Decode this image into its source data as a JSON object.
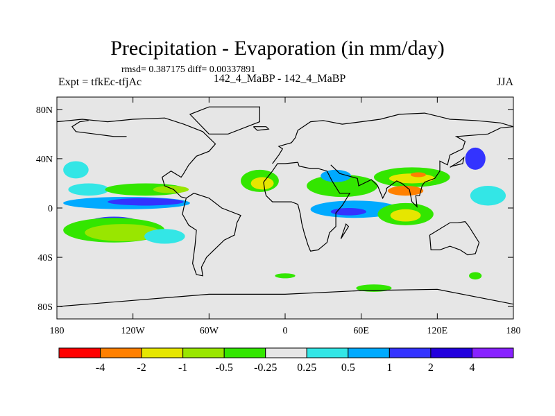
{
  "title": "Precipitation - Evaporation (in mm/day)",
  "stats": "rmsd= 0.387175 diff= 0.00337891",
  "experiment": "Expt = tfkEc-tfjAc",
  "case": "142_4_MaBP - 142_4_MaBP",
  "season": "JJA",
  "map": {
    "lon_range": [
      -180,
      180
    ],
    "lat_range": [
      -90,
      90
    ],
    "lat_ticks": [
      {
        "value": 80,
        "label": "80N"
      },
      {
        "value": 40,
        "label": "40N"
      },
      {
        "value": 0,
        "label": "0"
      },
      {
        "value": -40,
        "label": "40S"
      },
      {
        "value": -80,
        "label": "80S"
      }
    ],
    "lon_ticks": [
      {
        "value": -180,
        "label": "180"
      },
      {
        "value": -120,
        "label": "120W"
      },
      {
        "value": -60,
        "label": "60W"
      },
      {
        "value": 0,
        "label": "0"
      },
      {
        "value": 60,
        "label": "60E"
      },
      {
        "value": 120,
        "label": "120E"
      },
      {
        "value": 180,
        "label": "180"
      }
    ]
  },
  "colorbar": {
    "colors": [
      "#ff0000",
      "#ff8000",
      "#e6e600",
      "#99e600",
      "#33e600",
      "#e6e6e6",
      "#33e6e6",
      "#00aaff",
      "#3333ff",
      "#2200dd",
      "#8822ff"
    ],
    "labels": [
      "-4",
      "-2",
      "-1",
      "-0.5",
      "-0.25",
      "0.25",
      "0.5",
      "1",
      "2",
      "4"
    ]
  },
  "fields": [
    {
      "lon": -155,
      "lat": 15,
      "rx": 16,
      "ry": 5,
      "color": "#33e6e6"
    },
    {
      "lon": -110,
      "lat": 15,
      "rx": 32,
      "ry": 5,
      "color": "#33e600"
    },
    {
      "lon": -90,
      "lat": 15,
      "rx": 14,
      "ry": 3,
      "color": "#99e600"
    },
    {
      "lon": -125,
      "lat": 4,
      "rx": 50,
      "ry": 5,
      "color": "#00aaff"
    },
    {
      "lon": -110,
      "lat": 5,
      "rx": 30,
      "ry": 3,
      "color": "#3333ff"
    },
    {
      "lon": -165,
      "lat": 31,
      "rx": 10,
      "ry": 7,
      "color": "#33e6e6"
    },
    {
      "lon": -135,
      "lat": -12,
      "rx": 20,
      "ry": 5,
      "color": "#3333ff"
    },
    {
      "lon": -135,
      "lat": -18,
      "rx": 40,
      "ry": 10,
      "color": "#33e600"
    },
    {
      "lon": -128,
      "lat": -20,
      "rx": 30,
      "ry": 7,
      "color": "#99e600"
    },
    {
      "lon": -95,
      "lat": -23,
      "rx": 16,
      "ry": 6,
      "color": "#33e6e6"
    },
    {
      "lon": -20,
      "lat": 22,
      "rx": 15,
      "ry": 9,
      "color": "#33e600"
    },
    {
      "lon": -18,
      "lat": 20,
      "rx": 9,
      "ry": 5,
      "color": "#e6e600"
    },
    {
      "lon": 45,
      "lat": 18,
      "rx": 28,
      "ry": 9,
      "color": "#33e600"
    },
    {
      "lon": 40,
      "lat": 26,
      "rx": 12,
      "ry": 5,
      "color": "#00aaff"
    },
    {
      "lon": 100,
      "lat": 25,
      "rx": 30,
      "ry": 8,
      "color": "#33e600"
    },
    {
      "lon": 100,
      "lat": 24,
      "rx": 18,
      "ry": 4,
      "color": "#e6e600"
    },
    {
      "lon": 105,
      "lat": 27,
      "rx": 6,
      "ry": 2,
      "color": "#ff8000"
    },
    {
      "lon": 95,
      "lat": 14,
      "rx": 14,
      "ry": 4,
      "color": "#ff8000"
    },
    {
      "lon": 55,
      "lat": -1,
      "rx": 35,
      "ry": 7,
      "color": "#00aaff"
    },
    {
      "lon": 50,
      "lat": -3,
      "rx": 14,
      "ry": 3,
      "color": "#3333ff"
    },
    {
      "lon": 95,
      "lat": -5,
      "rx": 22,
      "ry": 9,
      "color": "#33e600"
    },
    {
      "lon": 95,
      "lat": -6,
      "rx": 12,
      "ry": 5,
      "color": "#e6e600"
    },
    {
      "lon": 150,
      "lat": 40,
      "rx": 8,
      "ry": 9,
      "color": "#3333ff"
    },
    {
      "lon": 160,
      "lat": 10,
      "rx": 14,
      "ry": 8,
      "color": "#33e6e6"
    },
    {
      "lon": 0,
      "lat": -55,
      "rx": 8,
      "ry": 2,
      "color": "#33e600"
    },
    {
      "lon": 70,
      "lat": -65,
      "rx": 14,
      "ry": 3,
      "color": "#33e600"
    },
    {
      "lon": 150,
      "lat": -55,
      "rx": 5,
      "ry": 3,
      "color": "#33e600"
    }
  ],
  "coastlines": [
    [
      [
        -180,
        70
      ],
      [
        -160,
        72
      ],
      [
        -140,
        70
      ],
      [
        -120,
        72
      ],
      [
        -95,
        73
      ],
      [
        -80,
        68
      ],
      [
        -65,
        62
      ],
      [
        -55,
        52
      ],
      [
        -60,
        46
      ],
      [
        -70,
        42
      ],
      [
        -76,
        35
      ],
      [
        -80,
        28
      ],
      [
        -82,
        25
      ],
      [
        -90,
        30
      ],
      [
        -97,
        25
      ],
      [
        -95,
        18
      ],
      [
        -88,
        15
      ],
      [
        -82,
        9
      ],
      [
        -78,
        8
      ]
    ],
    [
      [
        -78,
        8
      ],
      [
        -80,
        0
      ],
      [
        -81,
        -5
      ],
      [
        -76,
        -14
      ],
      [
        -70,
        -18
      ],
      [
        -71,
        -30
      ],
      [
        -73,
        -45
      ],
      [
        -70,
        -54
      ],
      [
        -65,
        -55
      ],
      [
        -66,
        -48
      ],
      [
        -62,
        -40
      ],
      [
        -57,
        -35
      ],
      [
        -48,
        -26
      ],
      [
        -40,
        -22
      ],
      [
        -38,
        -12
      ],
      [
        -35,
        -6
      ],
      [
        -50,
        0
      ],
      [
        -60,
        8
      ],
      [
        -72,
        12
      ],
      [
        -78,
        8
      ]
    ],
    [
      [
        -125,
        58
      ],
      [
        -135,
        58
      ],
      [
        -150,
        60
      ],
      [
        -165,
        62
      ],
      [
        -168,
        66
      ],
      [
        -162,
        70
      ],
      [
        -155,
        71
      ]
    ],
    [
      [
        -10,
        36
      ],
      [
        -5,
        43
      ],
      [
        -2,
        48
      ],
      [
        -5,
        50
      ],
      [
        5,
        53
      ],
      [
        8,
        57
      ],
      [
        10,
        63
      ],
      [
        20,
        70
      ],
      [
        30,
        71
      ],
      [
        45,
        68
      ],
      [
        60,
        70
      ],
      [
        75,
        72
      ],
      [
        90,
        76
      ],
      [
        110,
        77
      ],
      [
        130,
        72
      ],
      [
        150,
        71
      ],
      [
        170,
        69
      ],
      [
        180,
        66
      ]
    ],
    [
      [
        -17,
        21
      ],
      [
        -16,
        14
      ],
      [
        -15,
        10
      ],
      [
        -10,
        5
      ],
      [
        5,
        5
      ],
      [
        10,
        3
      ],
      [
        12,
        -5
      ],
      [
        13,
        -12
      ],
      [
        15,
        -20
      ],
      [
        18,
        -30
      ],
      [
        20,
        -35
      ],
      [
        26,
        -34
      ],
      [
        33,
        -28
      ],
      [
        35,
        -20
      ],
      [
        40,
        -15
      ],
      [
        40,
        -4
      ],
      [
        45,
        2
      ],
      [
        51,
        12
      ],
      [
        43,
        12
      ],
      [
        37,
        22
      ],
      [
        33,
        30
      ],
      [
        26,
        32
      ],
      [
        20,
        32
      ],
      [
        11,
        34
      ],
      [
        10,
        37
      ],
      [
        0,
        36
      ],
      [
        -6,
        36
      ],
      [
        -10,
        30
      ],
      [
        -17,
        21
      ]
    ],
    [
      [
        36,
        35
      ],
      [
        43,
        28
      ],
      [
        50,
        26
      ],
      [
        57,
        24
      ],
      [
        58,
        18
      ],
      [
        68,
        23
      ],
      [
        73,
        18
      ],
      [
        77,
        8
      ],
      [
        80,
        14
      ],
      [
        80,
        16
      ],
      [
        88,
        22
      ],
      [
        92,
        20
      ],
      [
        98,
        15
      ],
      [
        100,
        5
      ],
      [
        104,
        1
      ],
      [
        103,
        10
      ],
      [
        106,
        10
      ],
      [
        108,
        18
      ],
      [
        110,
        21
      ],
      [
        118,
        24
      ],
      [
        122,
        30
      ],
      [
        122,
        38
      ],
      [
        128,
        35
      ],
      [
        130,
        43
      ],
      [
        140,
        48
      ],
      [
        142,
        54
      ],
      [
        135,
        58
      ],
      [
        160,
        60
      ],
      [
        170,
        65
      ],
      [
        180,
        66
      ]
    ],
    [
      [
        114,
        -22
      ],
      [
        115,
        -34
      ],
      [
        122,
        -34
      ],
      [
        130,
        -31
      ],
      [
        138,
        -34
      ],
      [
        144,
        -38
      ],
      [
        150,
        -37
      ],
      [
        153,
        -28
      ],
      [
        145,
        -15
      ],
      [
        142,
        -11
      ],
      [
        136,
        -12
      ],
      [
        130,
        -12
      ],
      [
        122,
        -17
      ],
      [
        114,
        -22
      ]
    ],
    [
      [
        -60,
        60
      ],
      [
        -45,
        60
      ],
      [
        -20,
        70
      ],
      [
        -20,
        82
      ],
      [
        -60,
        82
      ],
      [
        -75,
        76
      ],
      [
        -60,
        60
      ]
    ],
    [
      [
        -180,
        -80
      ],
      [
        -120,
        -75
      ],
      [
        -60,
        -70
      ],
      [
        0,
        -70
      ],
      [
        60,
        -67
      ],
      [
        120,
        -66
      ],
      [
        180,
        -78
      ]
    ],
    [
      [
        -25,
        66
      ],
      [
        -15,
        66
      ],
      [
        -13,
        64
      ],
      [
        -22,
        63
      ],
      [
        -25,
        66
      ]
    ],
    [
      [
        44,
        -25
      ],
      [
        50,
        -15
      ],
      [
        48,
        -13
      ],
      [
        44,
        -25
      ]
    ],
    [
      [
        130,
        33
      ],
      [
        132,
        34
      ],
      [
        140,
        36
      ],
      [
        141,
        41
      ],
      [
        138,
        38
      ],
      [
        130,
        33
      ]
    ]
  ]
}
